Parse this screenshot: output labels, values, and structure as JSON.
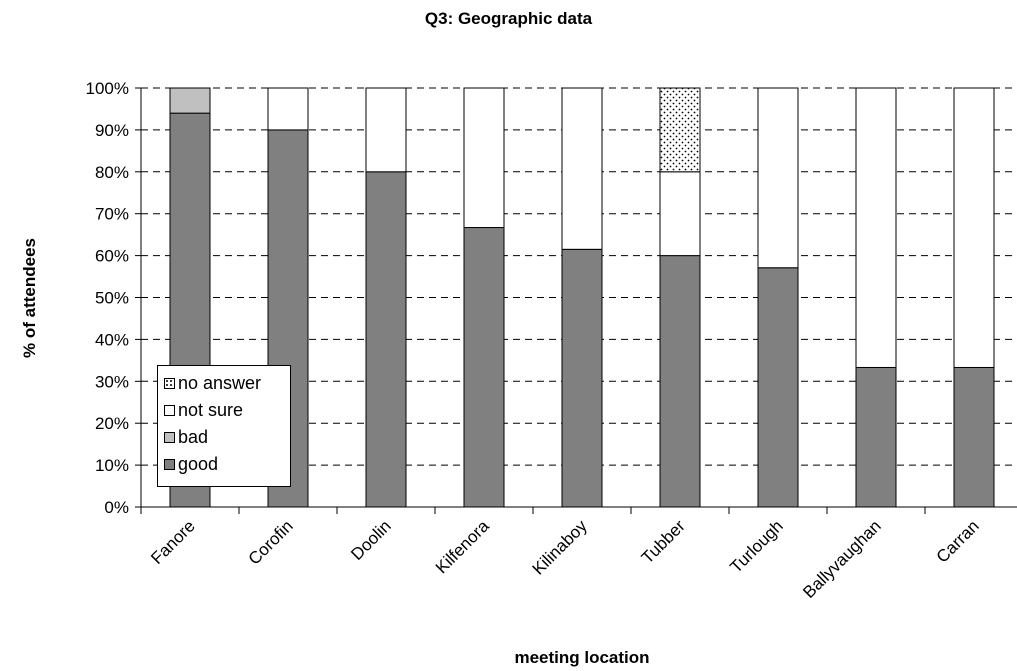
{
  "chart_data": {
    "type": "bar",
    "stacked": true,
    "title": "Q3: Geographic data",
    "xlabel": "meeting location",
    "ylabel": "% of attendees",
    "ylim": [
      0,
      100
    ],
    "y_ticks": [
      "0%",
      "10%",
      "20%",
      "30%",
      "40%",
      "50%",
      "60%",
      "70%",
      "80%",
      "90%",
      "100%"
    ],
    "grid": "horizontal dashed",
    "legend_position": "bottom-left",
    "categories": [
      "Fanore",
      "Corofin",
      "Doolin",
      "Kilfenora",
      "Kilinaboy",
      "Tubber",
      "Turlough",
      "Ballyvaughan",
      "Carran"
    ],
    "series": [
      {
        "name": "good",
        "color": "#808080",
        "values": [
          94,
          90,
          80,
          66.7,
          61.5,
          60,
          57.1,
          33.3,
          33.3
        ]
      },
      {
        "name": "bad",
        "color": "#c0c0c0",
        "values": [
          6,
          0,
          0,
          0,
          0,
          0,
          0,
          0,
          0
        ]
      },
      {
        "name": "not sure",
        "color": "#ffffff",
        "values": [
          0,
          10,
          20,
          33.3,
          38.5,
          20,
          42.9,
          66.7,
          66.7
        ]
      },
      {
        "name": "no answer",
        "color": "#ffffff",
        "pattern": "dotted",
        "values": [
          0,
          0,
          0,
          0,
          0,
          20,
          0,
          0,
          0
        ]
      }
    ]
  }
}
